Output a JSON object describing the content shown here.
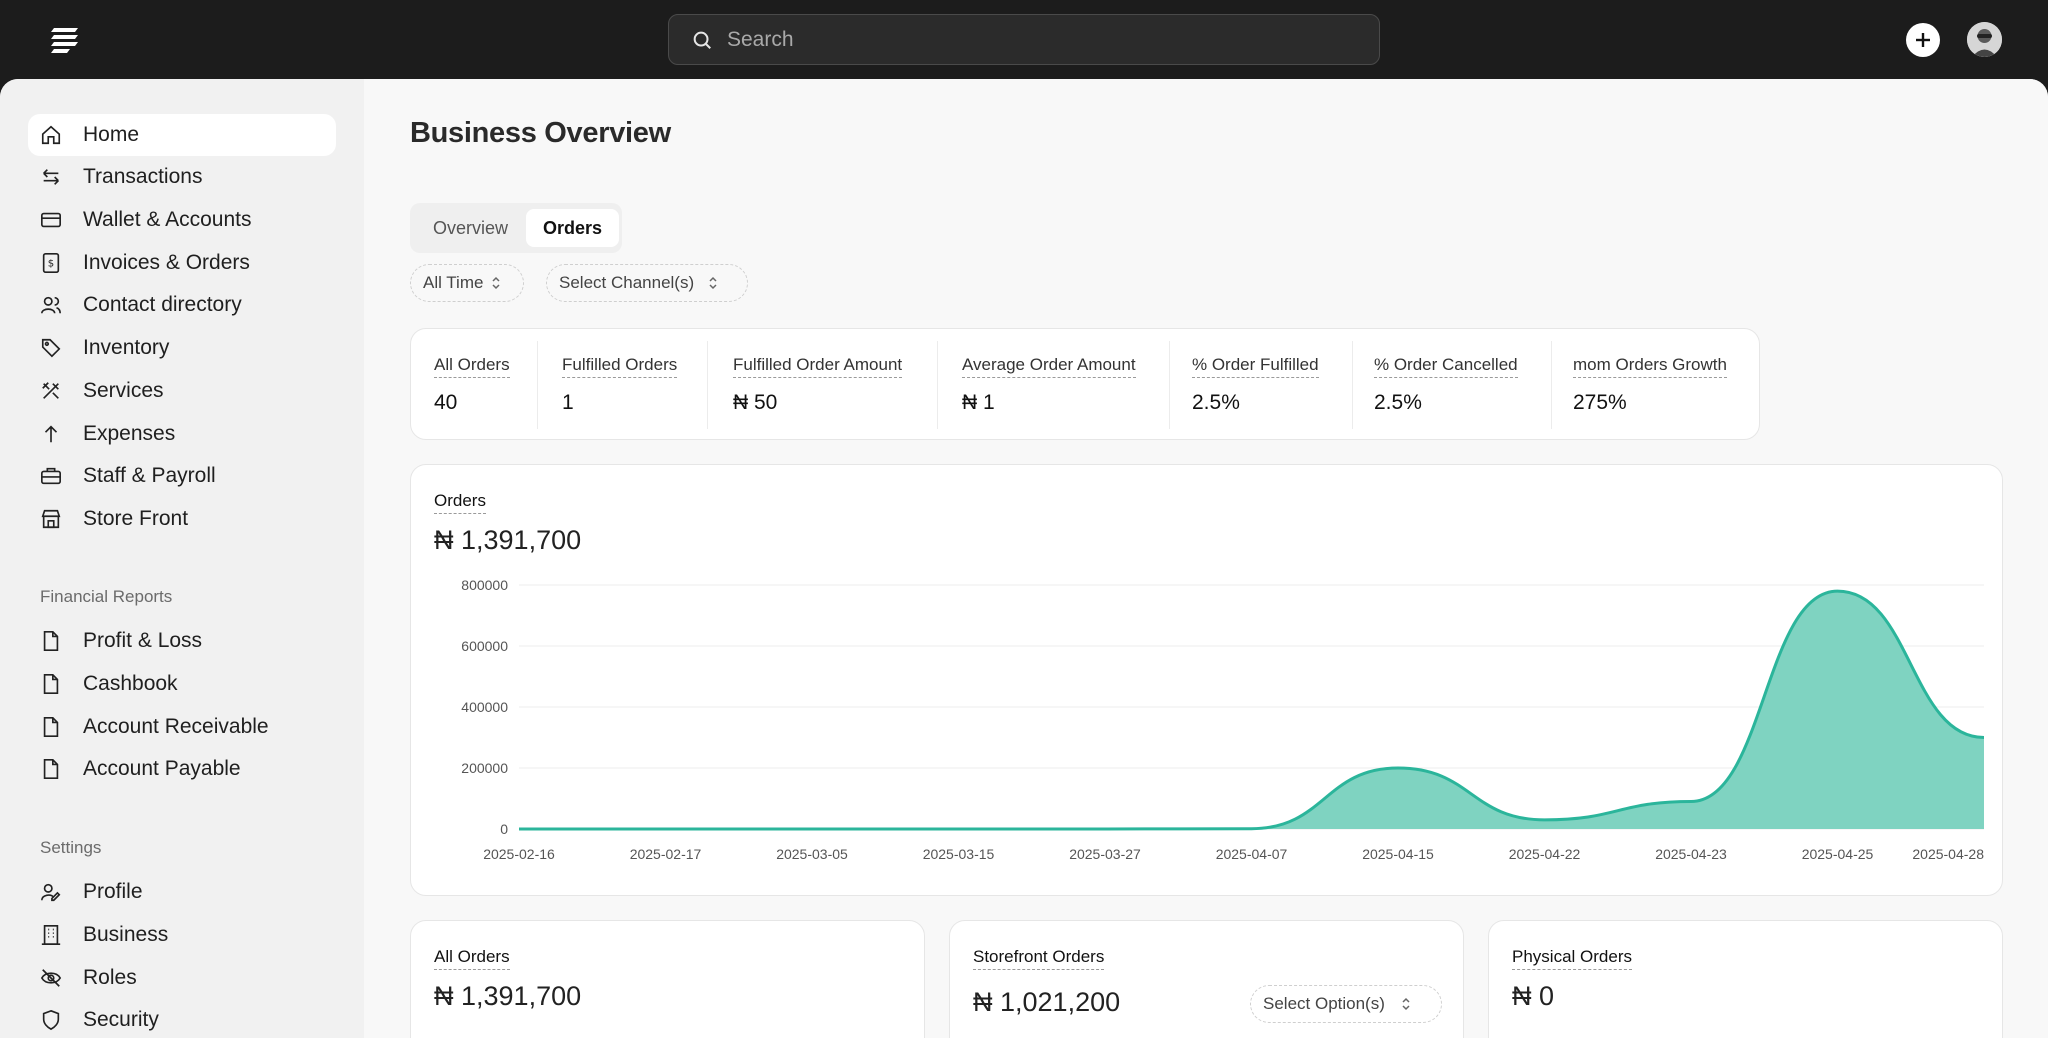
{
  "search": {
    "placeholder": "Search"
  },
  "sidebar": {
    "items": [
      {
        "label": "Home",
        "icon": "home-icon"
      },
      {
        "label": "Transactions",
        "icon": "arrows-icon"
      },
      {
        "label": "Wallet & Accounts",
        "icon": "card-icon"
      },
      {
        "label": "Invoices & Orders",
        "icon": "receipt-icon"
      },
      {
        "label": "Contact directory",
        "icon": "users-icon"
      },
      {
        "label": "Inventory",
        "icon": "tag-icon"
      },
      {
        "label": "Services",
        "icon": "tools-icon"
      },
      {
        "label": "Expenses",
        "icon": "arrow-up-icon"
      },
      {
        "label": "Staff & Payroll",
        "icon": "briefcase-icon"
      },
      {
        "label": "Store Front",
        "icon": "store-icon"
      }
    ],
    "financial_title": "Financial Reports",
    "financial": [
      {
        "label": "Profit & Loss",
        "icon": "file-icon"
      },
      {
        "label": "Cashbook",
        "icon": "file-icon"
      },
      {
        "label": "Account Receivable",
        "icon": "file-icon"
      },
      {
        "label": "Account Payable",
        "icon": "file-icon"
      }
    ],
    "settings_title": "Settings",
    "settings": [
      {
        "label": "Profile",
        "icon": "user-pen-icon"
      },
      {
        "label": "Business",
        "icon": "building-icon"
      },
      {
        "label": "Roles",
        "icon": "eye-off-icon"
      },
      {
        "label": "Security",
        "icon": "shield-icon"
      }
    ]
  },
  "page": {
    "title": "Business Overview"
  },
  "tabs": [
    {
      "label": "Overview"
    },
    {
      "label": "Orders"
    }
  ],
  "filters": {
    "time": "All Time",
    "channel": "Select Channel(s)"
  },
  "stats": [
    {
      "label": "All Orders",
      "value": "40"
    },
    {
      "label": "Fulfilled Orders",
      "value": "1"
    },
    {
      "label": "Fulfilled Order Amount",
      "value": "₦ 50"
    },
    {
      "label": "Average Order Amount",
      "value": "₦ 1"
    },
    {
      "label": "% Order Fulfilled",
      "value": "2.5%"
    },
    {
      "label": "% Order Cancelled",
      "value": "2.5%"
    },
    {
      "label": "mom Orders Growth",
      "value": "275%"
    }
  ],
  "orders_card": {
    "title": "Orders",
    "total": "₦ 1,391,700"
  },
  "chart_data": {
    "type": "area",
    "x": [
      "2025-02-16",
      "2025-02-17",
      "2025-03-05",
      "2025-03-15",
      "2025-03-27",
      "2025-04-07",
      "2025-04-15",
      "2025-04-22",
      "2025-04-23",
      "2025-04-25",
      "2025-04-28"
    ],
    "values": [
      0,
      0,
      0,
      0,
      0,
      1000,
      200000,
      30000,
      90000,
      780000,
      300000
    ],
    "y_ticks": [
      "0",
      "200000",
      "400000",
      "600000",
      "800000"
    ],
    "ylim": [
      0,
      800000
    ],
    "grid": true,
    "color": "#2bb59b",
    "fill": "#7fd3c1"
  },
  "bottom_cards": {
    "all": {
      "title": "All Orders",
      "total": "₦ 1,391,700"
    },
    "storefront": {
      "title": "Storefront Orders",
      "total": "₦ 1,021,200",
      "select": "Select Option(s)"
    },
    "physical": {
      "title": "Physical Orders",
      "total": "₦ 0"
    }
  }
}
